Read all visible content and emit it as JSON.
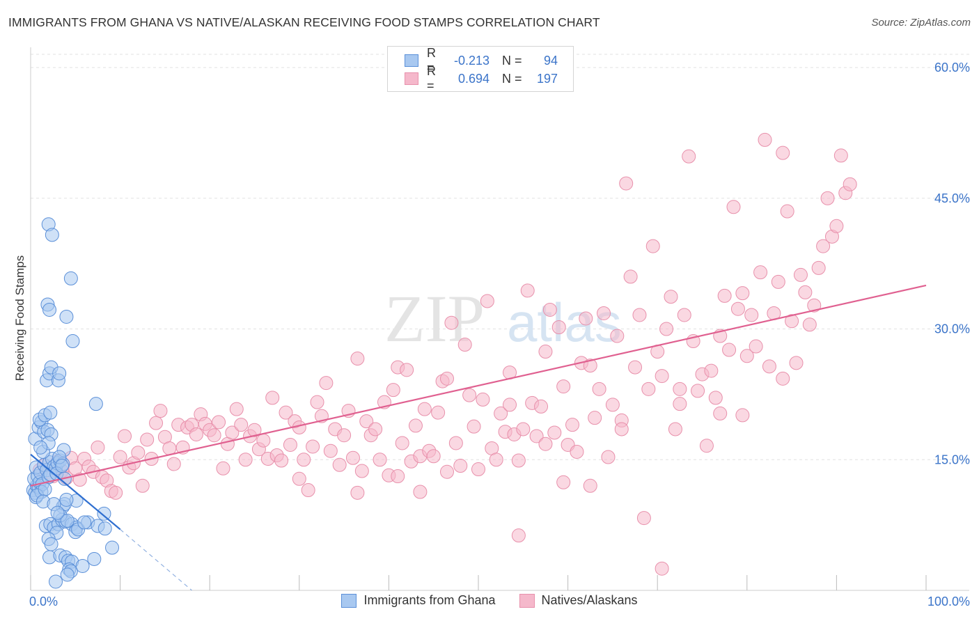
{
  "header": {
    "title": "IMMIGRANTS FROM GHANA VS NATIVE/ALASKAN RECEIVING FOOD STAMPS CORRELATION CHART",
    "source": "Source: ZipAtlas.com"
  },
  "watermark": {
    "zip": "ZIP",
    "atlas": "atlas"
  },
  "legend": {
    "rows": [
      {
        "r_label": "R =",
        "r_value": "-0.213",
        "n_label": "N =",
        "n_value": "94"
      },
      {
        "r_label": "R =",
        "r_value": "0.694",
        "n_label": "N =",
        "n_value": "197"
      }
    ]
  },
  "bottom_legend": {
    "series1": "Immigrants from Ghana",
    "series2": "Natives/Alaskans"
  },
  "colors": {
    "blue_fill": "#a8c8f0",
    "blue_stroke": "#5a8fd8",
    "blue_line": "#2f6fd0",
    "pink_fill": "#f5b8cb",
    "pink_stroke": "#e890ab",
    "pink_line": "#e06090",
    "axis_text": "#3b74c9"
  },
  "chart_data": {
    "type": "scatter",
    "title": "IMMIGRANTS FROM GHANA VS NATIVE/ALASKAN RECEIVING FOOD STAMPS CORRELATION CHART",
    "xlabel": "",
    "ylabel": "Receiving Food Stamps",
    "xlim": [
      0,
      100
    ],
    "ylim": [
      0,
      60
    ],
    "x_tick_labels": [
      "0.0%",
      "100.0%"
    ],
    "y_ticks": [
      15,
      30,
      45,
      60
    ],
    "y_tick_labels": [
      "15.0%",
      "30.0%",
      "45.0%",
      "60.0%"
    ],
    "series": [
      {
        "name": "Immigrants from Ghana",
        "color": "#a8c8f0",
        "trend": {
          "x": [
            0,
            10
          ],
          "y": [
            15.6,
            7.0
          ],
          "dashed_to": {
            "x": 18,
            "y": 0
          }
        },
        "points": [
          [
            0.3,
            11.5
          ],
          [
            0.5,
            11.2
          ],
          [
            0.6,
            10.7
          ],
          [
            0.7,
            12.0
          ],
          [
            0.4,
            12.8
          ],
          [
            0.8,
            13.1
          ],
          [
            0.9,
            11.8
          ],
          [
            1.0,
            12.4
          ],
          [
            0.6,
            14.1
          ],
          [
            1.1,
            13.5
          ],
          [
            1.3,
            12.2
          ],
          [
            1.5,
            14.4
          ],
          [
            1.2,
            11.3
          ],
          [
            0.7,
            10.9
          ],
          [
            1.8,
            13.8
          ],
          [
            2.0,
            13.0
          ],
          [
            2.1,
            14.7
          ],
          [
            1.6,
            11.6
          ],
          [
            2.4,
            15.1
          ],
          [
            2.6,
            14.2
          ],
          [
            2.2,
            13.3
          ],
          [
            2.8,
            14.0
          ],
          [
            3.0,
            14.6
          ],
          [
            3.3,
            14.9
          ],
          [
            3.6,
            14.5
          ],
          [
            2.9,
            13.4
          ],
          [
            3.8,
            12.8
          ],
          [
            1.4,
            10.2
          ],
          [
            0.5,
            17.4
          ],
          [
            0.9,
            18.7
          ],
          [
            1.2,
            19.3
          ],
          [
            1.5,
            18.2
          ],
          [
            1.9,
            18.4
          ],
          [
            2.3,
            17.9
          ],
          [
            1.0,
            19.6
          ],
          [
            1.6,
            20.1
          ],
          [
            2.2,
            20.4
          ],
          [
            3.7,
            16.1
          ],
          [
            3.2,
            15.3
          ],
          [
            1.8,
            24.1
          ],
          [
            2.1,
            24.9
          ],
          [
            2.3,
            25.6
          ],
          [
            3.1,
            24.1
          ],
          [
            3.2,
            24.9
          ],
          [
            1.9,
            32.8
          ],
          [
            2.1,
            32.2
          ],
          [
            4.0,
            31.4
          ],
          [
            4.7,
            28.6
          ],
          [
            4.5,
            35.8
          ],
          [
            2.0,
            42.0
          ],
          [
            2.4,
            40.8
          ],
          [
            7.3,
            21.4
          ],
          [
            1.7,
            7.4
          ],
          [
            2.2,
            7.6
          ],
          [
            2.6,
            7.2
          ],
          [
            3.1,
            7.6
          ],
          [
            3.5,
            8.1
          ],
          [
            3.9,
            7.9
          ],
          [
            4.6,
            7.6
          ],
          [
            5.1,
            7.2
          ],
          [
            5.0,
            6.7
          ],
          [
            5.3,
            7.0
          ],
          [
            6.4,
            7.8
          ],
          [
            7.5,
            7.4
          ],
          [
            8.3,
            7.1
          ],
          [
            2.9,
            6.6
          ],
          [
            2.0,
            5.9
          ],
          [
            2.3,
            5.3
          ],
          [
            2.1,
            3.8
          ],
          [
            3.3,
            4.0
          ],
          [
            3.9,
            3.8
          ],
          [
            4.2,
            3.4
          ],
          [
            4.6,
            3.3
          ],
          [
            4.3,
            2.4
          ],
          [
            4.5,
            2.2
          ],
          [
            5.8,
            2.8
          ],
          [
            7.1,
            3.6
          ],
          [
            9.1,
            4.9
          ],
          [
            2.8,
            1.0
          ],
          [
            4.1,
            1.8
          ],
          [
            3.6,
            9.6
          ],
          [
            3.8,
            9.9
          ],
          [
            5.1,
            10.3
          ],
          [
            4.0,
            10.4
          ],
          [
            2.6,
            9.9
          ],
          [
            3.3,
            8.6
          ],
          [
            4.1,
            8.0
          ],
          [
            3.0,
            8.9
          ],
          [
            8.2,
            8.8
          ],
          [
            6.0,
            7.8
          ],
          [
            3.5,
            14.3
          ],
          [
            1.4,
            15.9
          ],
          [
            2.0,
            16.9
          ],
          [
            1.1,
            16.4
          ]
        ]
      },
      {
        "name": "Natives/Alaskans",
        "color": "#f5b8cb",
        "trend": {
          "x": [
            0,
            100
          ],
          "y": [
            12.0,
            35.0
          ]
        },
        "points": [
          [
            1.0,
            13.8
          ],
          [
            1.5,
            14.3
          ],
          [
            2.5,
            13.1
          ],
          [
            3.0,
            14.8
          ],
          [
            3.5,
            13.7
          ],
          [
            4.0,
            12.9
          ],
          [
            4.5,
            15.2
          ],
          [
            5.0,
            14.0
          ],
          [
            5.5,
            12.7
          ],
          [
            6.0,
            15.1
          ],
          [
            6.5,
            14.2
          ],
          [
            7.0,
            13.6
          ],
          [
            7.5,
            16.4
          ],
          [
            8.0,
            13.0
          ],
          [
            8.5,
            12.6
          ],
          [
            9.0,
            11.4
          ],
          [
            9.5,
            11.2
          ],
          [
            10.0,
            15.3
          ],
          [
            10.5,
            17.7
          ],
          [
            11.0,
            14.1
          ],
          [
            11.5,
            14.6
          ],
          [
            12.0,
            15.8
          ],
          [
            12.5,
            12.0
          ],
          [
            13.0,
            17.3
          ],
          [
            13.5,
            15.1
          ],
          [
            14.0,
            19.2
          ],
          [
            14.5,
            20.6
          ],
          [
            15.0,
            17.6
          ],
          [
            15.5,
            16.3
          ],
          [
            16.0,
            14.5
          ],
          [
            16.5,
            19.0
          ],
          [
            17.0,
            16.4
          ],
          [
            17.5,
            18.7
          ],
          [
            18.0,
            19.0
          ],
          [
            18.5,
            17.9
          ],
          [
            19.0,
            20.2
          ],
          [
            19.5,
            19.1
          ],
          [
            20.0,
            18.4
          ],
          [
            20.5,
            17.8
          ],
          [
            21.0,
            19.3
          ],
          [
            21.5,
            14.0
          ],
          [
            22.0,
            16.8
          ],
          [
            22.5,
            18.1
          ],
          [
            23.0,
            20.8
          ],
          [
            23.5,
            19.0
          ],
          [
            24.0,
            15.0
          ],
          [
            24.5,
            17.7
          ],
          [
            25.0,
            18.4
          ],
          [
            25.5,
            16.2
          ],
          [
            26.0,
            17.2
          ],
          [
            26.5,
            15.1
          ],
          [
            27.0,
            22.1
          ],
          [
            27.5,
            15.5
          ],
          [
            28.0,
            14.9
          ],
          [
            28.5,
            20.4
          ],
          [
            29.0,
            16.7
          ],
          [
            29.5,
            19.4
          ],
          [
            30.0,
            18.7
          ],
          [
            30.5,
            15.0
          ],
          [
            31.0,
            11.5
          ],
          [
            31.5,
            16.5
          ],
          [
            32.0,
            21.6
          ],
          [
            32.5,
            20.0
          ],
          [
            33.0,
            23.8
          ],
          [
            33.5,
            16.0
          ],
          [
            34.0,
            18.5
          ],
          [
            34.5,
            14.4
          ],
          [
            35.0,
            17.8
          ],
          [
            35.5,
            20.6
          ],
          [
            36.0,
            15.2
          ],
          [
            36.5,
            11.2
          ],
          [
            37.0,
            13.7
          ],
          [
            37.5,
            19.4
          ],
          [
            38.0,
            17.8
          ],
          [
            38.5,
            18.5
          ],
          [
            39.0,
            15.0
          ],
          [
            39.5,
            21.6
          ],
          [
            40.0,
            13.2
          ],
          [
            40.5,
            23.0
          ],
          [
            41.0,
            25.6
          ],
          [
            41.5,
            16.9
          ],
          [
            42.0,
            25.3
          ],
          [
            42.5,
            14.8
          ],
          [
            43.0,
            18.9
          ],
          [
            43.5,
            15.4
          ],
          [
            44.0,
            20.8
          ],
          [
            44.5,
            16.0
          ],
          [
            45.0,
            15.4
          ],
          [
            45.5,
            20.4
          ],
          [
            46.0,
            24.0
          ],
          [
            46.5,
            13.6
          ],
          [
            47.0,
            30.7
          ],
          [
            47.5,
            16.9
          ],
          [
            48.0,
            14.3
          ],
          [
            48.5,
            28.2
          ],
          [
            49.0,
            22.4
          ],
          [
            49.5,
            18.8
          ],
          [
            50.0,
            13.9
          ],
          [
            50.5,
            21.9
          ],
          [
            51.0,
            33.2
          ],
          [
            51.5,
            16.3
          ],
          [
            52.0,
            15.0
          ],
          [
            52.5,
            20.3
          ],
          [
            53.0,
            18.2
          ],
          [
            53.5,
            21.3
          ],
          [
            54.0,
            17.9
          ],
          [
            54.5,
            14.9
          ],
          [
            55.0,
            18.5
          ],
          [
            55.5,
            34.4
          ],
          [
            56.0,
            21.5
          ],
          [
            56.5,
            17.7
          ],
          [
            57.0,
            21.1
          ],
          [
            57.5,
            16.8
          ],
          [
            58.0,
            32.2
          ],
          [
            58.5,
            18.1
          ],
          [
            59.0,
            30.2
          ],
          [
            59.5,
            23.4
          ],
          [
            60.0,
            16.7
          ],
          [
            60.5,
            19.0
          ],
          [
            61.0,
            15.9
          ],
          [
            61.5,
            26.1
          ],
          [
            62.0,
            31.2
          ],
          [
            62.5,
            12.0
          ],
          [
            63.0,
            19.8
          ],
          [
            63.5,
            23.1
          ],
          [
            64.0,
            31.8
          ],
          [
            64.5,
            15.3
          ],
          [
            65.0,
            21.3
          ],
          [
            65.5,
            29.2
          ],
          [
            66.0,
            19.5
          ],
          [
            66.5,
            46.7
          ],
          [
            67.0,
            36.0
          ],
          [
            67.5,
            25.6
          ],
          [
            68.0,
            31.6
          ],
          [
            68.5,
            8.3
          ],
          [
            69.0,
            23.1
          ],
          [
            69.5,
            39.5
          ],
          [
            70.0,
            27.4
          ],
          [
            70.5,
            24.6
          ],
          [
            71.0,
            30.0
          ],
          [
            71.5,
            33.7
          ],
          [
            72.0,
            18.5
          ],
          [
            72.5,
            23.1
          ],
          [
            73.0,
            31.6
          ],
          [
            73.5,
            49.8
          ],
          [
            74.0,
            28.6
          ],
          [
            74.5,
            22.9
          ],
          [
            75.0,
            24.8
          ],
          [
            75.5,
            16.6
          ],
          [
            76.0,
            25.2
          ],
          [
            76.5,
            22.1
          ],
          [
            77.0,
            29.2
          ],
          [
            77.5,
            33.8
          ],
          [
            78.0,
            27.6
          ],
          [
            78.5,
            44.0
          ],
          [
            79.0,
            32.3
          ],
          [
            79.5,
            34.1
          ],
          [
            80.0,
            26.9
          ],
          [
            80.5,
            31.6
          ],
          [
            81.0,
            28.0
          ],
          [
            81.5,
            36.5
          ],
          [
            82.0,
            51.7
          ],
          [
            82.5,
            25.7
          ],
          [
            83.0,
            31.8
          ],
          [
            83.5,
            35.4
          ],
          [
            84.0,
            50.2
          ],
          [
            84.5,
            43.5
          ],
          [
            85.0,
            30.9
          ],
          [
            85.5,
            26.1
          ],
          [
            86.0,
            36.2
          ],
          [
            86.5,
            34.2
          ],
          [
            87.0,
            30.5
          ],
          [
            87.5,
            32.7
          ],
          [
            88.0,
            37.0
          ],
          [
            88.5,
            39.5
          ],
          [
            89.0,
            45.0
          ],
          [
            89.5,
            40.6
          ],
          [
            90.0,
            41.8
          ],
          [
            90.5,
            49.9
          ],
          [
            91.0,
            45.6
          ],
          [
            91.5,
            46.6
          ],
          [
            54.5,
            6.3
          ],
          [
            70.5,
            2.5
          ],
          [
            57.5,
            27.4
          ],
          [
            41.0,
            13.1
          ],
          [
            36.5,
            26.6
          ],
          [
            46.5,
            24.3
          ],
          [
            62.5,
            25.8
          ],
          [
            30.0,
            12.8
          ],
          [
            77.0,
            20.3
          ],
          [
            79.5,
            20.1
          ],
          [
            43.5,
            11.3
          ],
          [
            66.0,
            18.5
          ],
          [
            53.5,
            25.0
          ],
          [
            59.5,
            12.4
          ],
          [
            72.5,
            21.4
          ],
          [
            84.0,
            24.3
          ]
        ]
      }
    ]
  }
}
